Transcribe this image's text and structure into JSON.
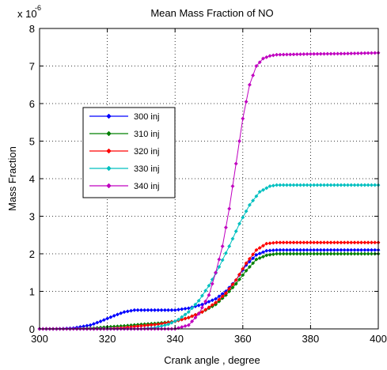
{
  "chart_data": {
    "type": "line",
    "title": "Mean Mass Fraction of NO",
    "xlabel": "Crank angle , degree",
    "ylabel": "Mass Fraction",
    "y_multiplier_label": "x 10",
    "y_multiplier_exponent": "-6",
    "xlim": [
      300,
      400
    ],
    "ylim": [
      0,
      8
    ],
    "xticks": [
      "300",
      "320",
      "340",
      "360",
      "380",
      "400"
    ],
    "yticks": [
      "0",
      "1",
      "2",
      "3",
      "4",
      "5",
      "6",
      "7",
      "8"
    ],
    "grid": true,
    "legend_position": "left-middle",
    "series": [
      {
        "name": "300 inj",
        "color": "#0000ff",
        "points": [
          [
            300,
            0
          ],
          [
            305,
            0
          ],
          [
            310,
            0.02
          ],
          [
            315,
            0.1
          ],
          [
            318,
            0.2
          ],
          [
            322,
            0.35
          ],
          [
            325,
            0.45
          ],
          [
            328,
            0.5
          ],
          [
            332,
            0.5
          ],
          [
            336,
            0.5
          ],
          [
            340,
            0.5
          ],
          [
            344,
            0.55
          ],
          [
            348,
            0.65
          ],
          [
            352,
            0.8
          ],
          [
            355,
            1.0
          ],
          [
            358,
            1.3
          ],
          [
            361,
            1.7
          ],
          [
            364,
            1.97
          ],
          [
            367,
            2.08
          ],
          [
            370,
            2.1
          ],
          [
            380,
            2.1
          ],
          [
            390,
            2.1
          ],
          [
            400,
            2.1
          ]
        ]
      },
      {
        "name": "310 inj",
        "color": "#008000",
        "points": [
          [
            300,
            0
          ],
          [
            310,
            0
          ],
          [
            316,
            0.02
          ],
          [
            320,
            0.05
          ],
          [
            325,
            0.08
          ],
          [
            330,
            0.12
          ],
          [
            335,
            0.15
          ],
          [
            340,
            0.2
          ],
          [
            344,
            0.3
          ],
          [
            348,
            0.45
          ],
          [
            352,
            0.65
          ],
          [
            355,
            0.9
          ],
          [
            358,
            1.2
          ],
          [
            361,
            1.55
          ],
          [
            364,
            1.85
          ],
          [
            367,
            1.96
          ],
          [
            370,
            2.0
          ],
          [
            380,
            2.0
          ],
          [
            390,
            2.0
          ],
          [
            400,
            2.0
          ]
        ]
      },
      {
        "name": "320 inj",
        "color": "#ff0000",
        "points": [
          [
            300,
            0
          ],
          [
            320,
            0
          ],
          [
            325,
            0.03
          ],
          [
            330,
            0.08
          ],
          [
            335,
            0.12
          ],
          [
            340,
            0.2
          ],
          [
            344,
            0.3
          ],
          [
            348,
            0.45
          ],
          [
            352,
            0.7
          ],
          [
            355,
            0.95
          ],
          [
            358,
            1.3
          ],
          [
            361,
            1.75
          ],
          [
            364,
            2.1
          ],
          [
            367,
            2.27
          ],
          [
            370,
            2.3
          ],
          [
            380,
            2.3
          ],
          [
            390,
            2.3
          ],
          [
            400,
            2.3
          ]
        ]
      },
      {
        "name": "330 inj",
        "color": "#00c0c0",
        "points": [
          [
            300,
            0
          ],
          [
            330,
            0
          ],
          [
            334,
            0.03
          ],
          [
            338,
            0.12
          ],
          [
            341,
            0.25
          ],
          [
            344,
            0.45
          ],
          [
            347,
            0.75
          ],
          [
            350,
            1.15
          ],
          [
            353,
            1.65
          ],
          [
            356,
            2.2
          ],
          [
            359,
            2.8
          ],
          [
            362,
            3.3
          ],
          [
            365,
            3.65
          ],
          [
            368,
            3.8
          ],
          [
            370,
            3.83
          ],
          [
            380,
            3.83
          ],
          [
            390,
            3.83
          ],
          [
            400,
            3.83
          ]
        ]
      },
      {
        "name": "340 inj",
        "color": "#c000c0",
        "points": [
          [
            300,
            0
          ],
          [
            340,
            0
          ],
          [
            344,
            0.1
          ],
          [
            347,
            0.4
          ],
          [
            350,
            0.9
          ],
          [
            352,
            1.5
          ],
          [
            354,
            2.2
          ],
          [
            356,
            3.2
          ],
          [
            358,
            4.4
          ],
          [
            360,
            5.6
          ],
          [
            362,
            6.5
          ],
          [
            364,
            7.0
          ],
          [
            366,
            7.2
          ],
          [
            368,
            7.27
          ],
          [
            370,
            7.3
          ],
          [
            380,
            7.32
          ],
          [
            390,
            7.33
          ],
          [
            400,
            7.35
          ]
        ]
      }
    ]
  }
}
